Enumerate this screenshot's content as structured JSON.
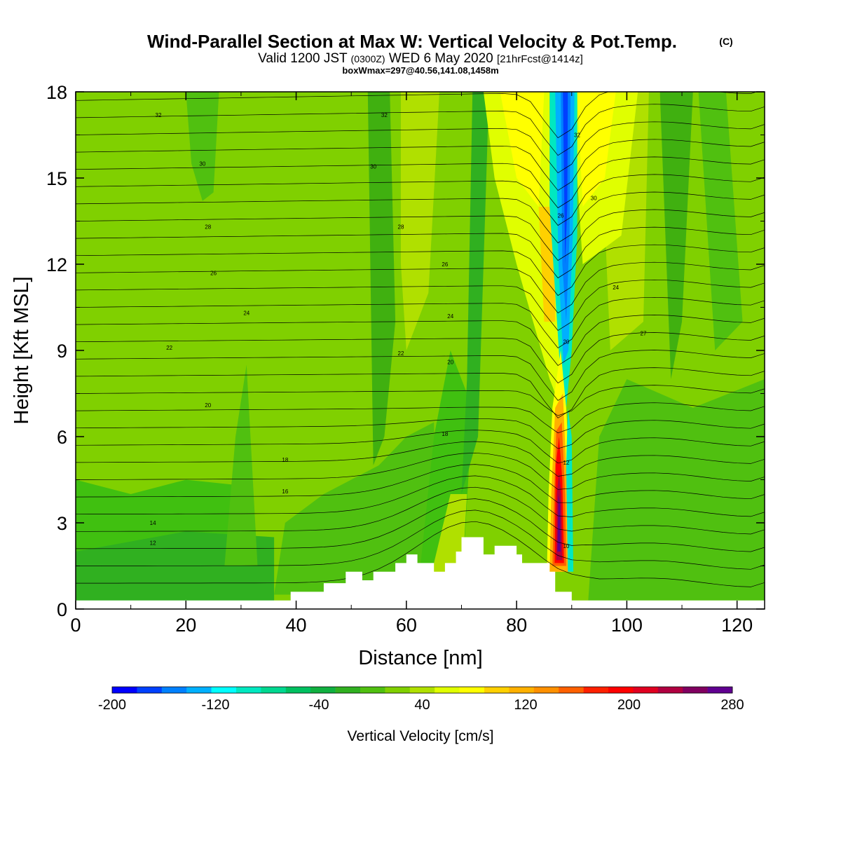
{
  "header": {
    "title": "Wind-Parallel Section at Max W: Vertical Velocity & Pot.Temp.",
    "copyright": "(C)",
    "valid_prefix": "Valid 1200 JST",
    "valid_utc": "(0300Z)",
    "valid_date": "WED 6 May 2020",
    "forecast": "[21hrFcst@1414z]",
    "box_info": "boxWmax=297@40.56,141.08,1458m"
  },
  "chart_data": {
    "type": "heatmap",
    "title": "Wind-Parallel Section at Max W: Vertical Velocity & Pot.Temp.",
    "xlabel": "Distance [nm]",
    "ylabel": "Height [Kft MSL]",
    "xlim": [
      0,
      125
    ],
    "ylim": [
      0,
      18
    ],
    "x_ticks": [
      "0",
      "20",
      "40",
      "60",
      "80",
      "100",
      "120"
    ],
    "y_ticks": [
      "0",
      "3",
      "6",
      "9",
      "12",
      "15",
      "18"
    ],
    "colorbar": {
      "label": "Vertical Velocity [cm/s]",
      "ticks": [
        "-200",
        "-120",
        "-40",
        "40",
        "120",
        "200",
        "280"
      ],
      "levels": [
        -200,
        280
      ],
      "colors": [
        "#0000ff",
        "#0040ff",
        "#0080ff",
        "#00b0ff",
        "#00ffff",
        "#00e8c0",
        "#00d890",
        "#00c060",
        "#10b040",
        "#30b020",
        "#50c010",
        "#80d000",
        "#b0e000",
        "#e0ff00",
        "#ffff00",
        "#ffd000",
        "#ffb000",
        "#ff9000",
        "#ff6000",
        "#ff2000",
        "#ff0000",
        "#e00020",
        "#b00040",
        "#800060",
        "#600090"
      ]
    },
    "terrain_kft": [
      [
        0,
        0.3
      ],
      [
        39,
        0.3
      ],
      [
        39,
        0.6
      ],
      [
        45,
        0.6
      ],
      [
        45,
        0.9
      ],
      [
        49,
        0.9
      ],
      [
        49,
        1.3
      ],
      [
        52,
        1.3
      ],
      [
        52,
        1.0
      ],
      [
        54,
        1.0
      ],
      [
        54,
        1.3
      ],
      [
        58,
        1.3
      ],
      [
        58,
        1.6
      ],
      [
        60,
        1.6
      ],
      [
        60,
        1.9
      ],
      [
        62,
        1.9
      ],
      [
        62,
        1.6
      ],
      [
        65,
        1.6
      ],
      [
        65,
        1.3
      ],
      [
        67,
        1.3
      ],
      [
        67,
        1.6
      ],
      [
        69,
        1.6
      ],
      [
        69,
        2.0
      ],
      [
        70,
        2.0
      ],
      [
        70,
        2.5
      ],
      [
        74,
        2.5
      ],
      [
        74,
        1.9
      ],
      [
        76,
        1.9
      ],
      [
        76,
        2.2
      ],
      [
        80,
        2.2
      ],
      [
        80,
        1.9
      ],
      [
        81,
        1.9
      ],
      [
        81,
        1.6
      ],
      [
        86,
        1.6
      ],
      [
        86,
        1.3
      ],
      [
        87,
        1.3
      ],
      [
        87,
        0.6
      ],
      [
        90,
        0.6
      ],
      [
        90,
        0.3
      ],
      [
        125,
        0.3
      ]
    ],
    "updraft_core": {
      "distance_nm": 88,
      "height_range_kft": [
        1.5,
        7.5
      ],
      "max_w_cm_s": 297
    },
    "downdraft_core": {
      "distance_nm_range": [
        86,
        91
      ],
      "height_range_kft": [
        8,
        18
      ]
    },
    "theta_labels": [
      "32",
      "30",
      "28",
      "26",
      "24",
      "22",
      "20",
      "18",
      "16",
      "14",
      "12",
      "32",
      "30",
      "28",
      "26",
      "24",
      "22",
      "20",
      "18",
      "32",
      "30",
      "26",
      "24",
      "27",
      "20",
      "12",
      "10"
    ]
  }
}
